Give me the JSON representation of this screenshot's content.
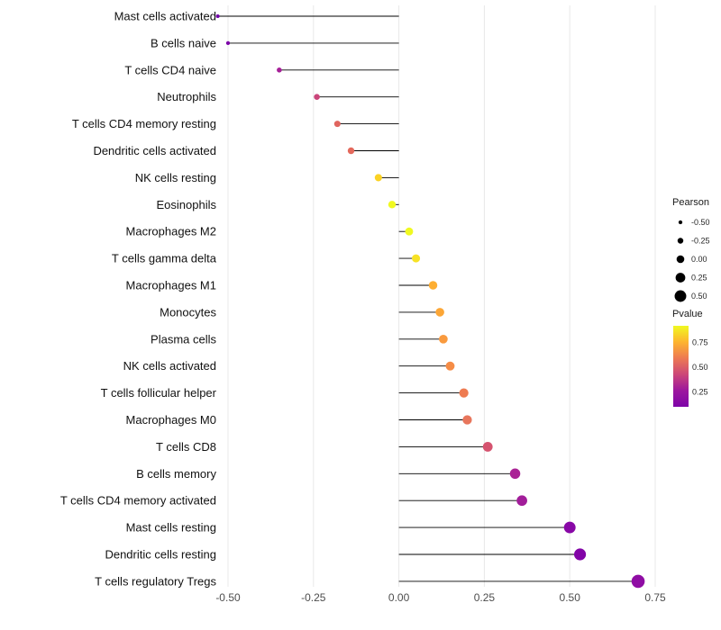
{
  "figure": {
    "background": "#ffffff",
    "grid_color": "#e8e8e8",
    "stem_color": "#000000",
    "category_label_color": "#111111",
    "tick_label_color": "#4d4d4d",
    "legend_text_color": "#262626"
  },
  "chart_data": {
    "type": "lollipop",
    "orientation": "horizontal",
    "title": "",
    "xlabel": "",
    "ylabel": "",
    "xlim": [
      -0.62,
      0.8
    ],
    "x_ticks": [
      -0.5,
      -0.25,
      0,
      0.25,
      0.5,
      0.75
    ],
    "x_tick_labels": [
      "-0.50",
      "-0.25",
      "0.00",
      "0.25",
      "0.50",
      "0.75"
    ],
    "grid": "vertical-major-only",
    "stem_origin": 0,
    "points": [
      {
        "category": "Mast cells activated",
        "pearson": -0.53,
        "pvalue_approx": 0.08,
        "color": "#7102a8"
      },
      {
        "category": "B cells naive",
        "pearson": -0.5,
        "pvalue_approx": 0.1,
        "color": "#7c03a8"
      },
      {
        "category": "T cells CD4 naive",
        "pearson": -0.35,
        "pvalue_approx": 0.2,
        "color": "#a62098"
      },
      {
        "category": "Neutrophils",
        "pearson": -0.24,
        "pvalue_approx": 0.35,
        "color": "#ca457a"
      },
      {
        "category": "T cells CD4 memory resting",
        "pearson": -0.18,
        "pvalue_approx": 0.48,
        "color": "#e0655f"
      },
      {
        "category": "Dendritic cells activated",
        "pearson": -0.14,
        "pvalue_approx": 0.52,
        "color": "#e4695c"
      },
      {
        "category": "NK cells resting",
        "pearson": -0.06,
        "pvalue_approx": 0.78,
        "color": "#fbd224"
      },
      {
        "category": "Eosinophils",
        "pearson": -0.02,
        "pvalue_approx": 0.9,
        "color": "#f0f921"
      },
      {
        "category": "Macrophages M2",
        "pearson": 0.03,
        "pvalue_approx": 0.9,
        "color": "#f0f921"
      },
      {
        "category": "T cells gamma delta",
        "pearson": 0.05,
        "pvalue_approx": 0.85,
        "color": "#f7e225"
      },
      {
        "category": "Macrophages M1",
        "pearson": 0.1,
        "pvalue_approx": 0.68,
        "color": "#fdae32"
      },
      {
        "category": "Monocytes",
        "pearson": 0.12,
        "pvalue_approx": 0.65,
        "color": "#fca636"
      },
      {
        "category": "Plasma cells",
        "pearson": 0.13,
        "pvalue_approx": 0.6,
        "color": "#f99a3e"
      },
      {
        "category": "NK cells activated",
        "pearson": 0.15,
        "pvalue_approx": 0.58,
        "color": "#f58c46"
      },
      {
        "category": "T cells follicular helper",
        "pearson": 0.19,
        "pvalue_approx": 0.52,
        "color": "#ee7b51"
      },
      {
        "category": "Macrophages M0",
        "pearson": 0.2,
        "pvalue_approx": 0.5,
        "color": "#e8765c"
      },
      {
        "category": "T cells CD8",
        "pearson": 0.26,
        "pvalue_approx": 0.38,
        "color": "#d5536f"
      },
      {
        "category": "B cells memory",
        "pearson": 0.34,
        "pvalue_approx": 0.22,
        "color": "#aa2395"
      },
      {
        "category": "T cells CD4 memory activated",
        "pearson": 0.36,
        "pvalue_approx": 0.2,
        "color": "#a21d9a"
      },
      {
        "category": "Mast cells resting",
        "pearson": 0.5,
        "pvalue_approx": 0.1,
        "color": "#8808a6"
      },
      {
        "category": "Dendritic cells resting",
        "pearson": 0.53,
        "pvalue_approx": 0.09,
        "color": "#8204a7"
      },
      {
        "category": "T cells regulatory  Tregs",
        "pearson": 0.7,
        "pvalue_approx": 0.03,
        "color": "#8f0da4"
      }
    ],
    "size_legend": {
      "title": "Pearson",
      "values": [
        -0.5,
        -0.25,
        0,
        0.25,
        0.5
      ],
      "labels": [
        "-0.50",
        "-0.25",
        "0.00",
        "0.25",
        "0.50"
      ]
    },
    "color_legend": {
      "title": "Pvalue",
      "label_values": [
        0.75,
        0.5,
        0.25
      ],
      "labels": [
        "0.75",
        "0.50",
        "0.25"
      ],
      "gradient_top_to_bottom": [
        "#f0f921",
        "#fdb42f",
        "#ed7953",
        "#cc4778",
        "#9c179e",
        "#7e03a8"
      ]
    }
  }
}
